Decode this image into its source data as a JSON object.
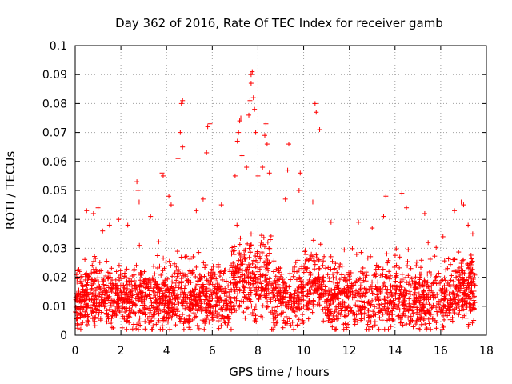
{
  "chart_data": {
    "type": "scatter",
    "title": "Day 362 of 2016, Rate Of TEC Index for receiver gamb",
    "xlabel": "GPS time / hours",
    "ylabel": "ROTI / TECUs",
    "xlim": [
      0,
      18
    ],
    "ylim": [
      0,
      0.1
    ],
    "x_ticks": [
      0,
      2,
      4,
      6,
      8,
      10,
      12,
      14,
      16,
      18
    ],
    "y_ticks": [
      0,
      0.01,
      0.02,
      0.03,
      0.04,
      0.05,
      0.06,
      0.07,
      0.08,
      0.09,
      0.1
    ],
    "grid": true,
    "marker": "+",
    "color": "#ff0000",
    "series": [
      {
        "name": "ROTI",
        "data_range_x": [
          0,
          17.5
        ],
        "points": [
          [
            0.2,
            0.022
          ],
          [
            0.5,
            0.043
          ],
          [
            0.8,
            0.042
          ],
          [
            1.0,
            0.044
          ],
          [
            1.2,
            0.036
          ],
          [
            1.5,
            0.038
          ],
          [
            1.9,
            0.04
          ],
          [
            2.3,
            0.038
          ],
          [
            2.7,
            0.053
          ],
          [
            2.75,
            0.05
          ],
          [
            2.8,
            0.046
          ],
          [
            3.3,
            0.041
          ],
          [
            3.8,
            0.056
          ],
          [
            3.85,
            0.055
          ],
          [
            4.1,
            0.048
          ],
          [
            4.2,
            0.045
          ],
          [
            4.5,
            0.061
          ],
          [
            4.6,
            0.07
          ],
          [
            4.65,
            0.08
          ],
          [
            4.7,
            0.081
          ],
          [
            4.7,
            0.065
          ],
          [
            5.3,
            0.043
          ],
          [
            5.6,
            0.047
          ],
          [
            5.75,
            0.063
          ],
          [
            5.8,
            0.072
          ],
          [
            5.9,
            0.073
          ],
          [
            6.4,
            0.045
          ],
          [
            7.0,
            0.055
          ],
          [
            7.1,
            0.067
          ],
          [
            7.15,
            0.07
          ],
          [
            7.2,
            0.074
          ],
          [
            7.25,
            0.075
          ],
          [
            7.3,
            0.062
          ],
          [
            7.5,
            0.058
          ],
          [
            7.6,
            0.076
          ],
          [
            7.65,
            0.081
          ],
          [
            7.7,
            0.09
          ],
          [
            7.75,
            0.091
          ],
          [
            7.7,
            0.087
          ],
          [
            7.8,
            0.082
          ],
          [
            7.85,
            0.078
          ],
          [
            7.9,
            0.07
          ],
          [
            8.0,
            0.055
          ],
          [
            8.3,
            0.069
          ],
          [
            8.35,
            0.073
          ],
          [
            8.4,
            0.066
          ],
          [
            8.2,
            0.058
          ],
          [
            8.5,
            0.056
          ],
          [
            9.2,
            0.047
          ],
          [
            9.3,
            0.057
          ],
          [
            9.35,
            0.066
          ],
          [
            9.8,
            0.05
          ],
          [
            9.85,
            0.056
          ],
          [
            10.5,
            0.08
          ],
          [
            10.55,
            0.077
          ],
          [
            10.7,
            0.071
          ],
          [
            10.4,
            0.046
          ],
          [
            11.2,
            0.039
          ],
          [
            12.4,
            0.039
          ],
          [
            13.0,
            0.037
          ],
          [
            13.5,
            0.041
          ],
          [
            13.6,
            0.048
          ],
          [
            14.3,
            0.049
          ],
          [
            14.5,
            0.044
          ],
          [
            15.3,
            0.042
          ],
          [
            16.1,
            0.034
          ],
          [
            16.6,
            0.043
          ],
          [
            16.9,
            0.046
          ],
          [
            17.0,
            0.045
          ],
          [
            17.2,
            0.038
          ],
          [
            17.4,
            0.035
          ],
          [
            17.45,
            0.012
          ]
        ],
        "dense_band": {
          "description": "dense cloud of points between roughly 0.005 and 0.03 TECU across 0-17.5 h",
          "typical_range": [
            0.005,
            0.03
          ],
          "x_range": [
            0,
            17.5
          ],
          "minimum_observed": 0.002
        }
      }
    ]
  }
}
